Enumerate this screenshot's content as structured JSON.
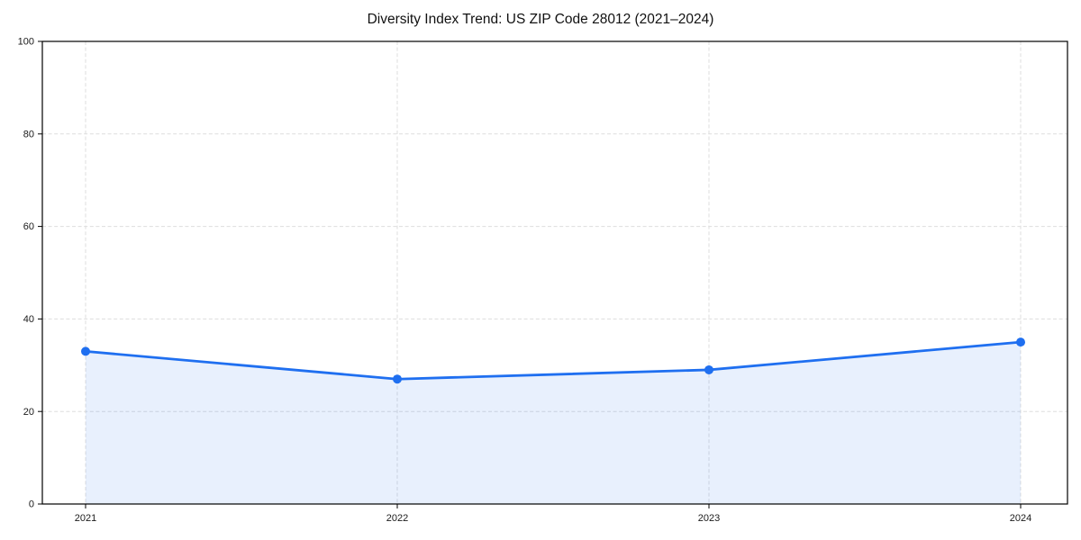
{
  "chart_data": {
    "type": "line",
    "title": "Diversity Index Trend: US ZIP Code 28012 (2021–2024)",
    "x": [
      "2021",
      "2022",
      "2023",
      "2024"
    ],
    "series": [
      {
        "name": "Diversity Index",
        "values": [
          33,
          27,
          29,
          35
        ]
      }
    ],
    "xlabel": "",
    "ylabel": "",
    "ylim": [
      0,
      100
    ],
    "yticks": [
      0,
      20,
      40,
      60,
      80,
      100
    ],
    "grid": "dashed, horizontal and vertical",
    "legend_position": "none",
    "area_fill": true,
    "markers": "filled circles",
    "colors": {
      "line": "#1f6ff0",
      "fill": "#1f6ff0",
      "fill_opacity": 0.1,
      "grid": "#dddddd",
      "spine": "#000000",
      "tick_text": "#1a1a1a",
      "background": "#ffffff"
    }
  }
}
